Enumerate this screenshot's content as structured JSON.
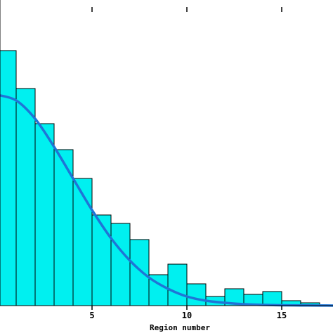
{
  "chart_data": {
    "type": "bar",
    "x_start": 0,
    "bin_width": 1,
    "values": [
      363,
      309,
      259,
      222,
      181,
      129,
      117,
      94,
      44,
      59,
      31,
      13,
      24,
      16,
      20,
      7,
      4,
      0
    ],
    "fit_curve": {
      "x": [
        0,
        1,
        2,
        3,
        4,
        5,
        6,
        7,
        8,
        9,
        10,
        11,
        12,
        13,
        14,
        15,
        16,
        17,
        18
      ],
      "y": [
        300,
        292,
        266,
        226,
        181,
        136,
        96,
        64,
        40,
        24,
        13,
        7,
        4,
        2,
        1,
        0.5,
        0.3,
        0.1,
        0.05
      ]
    },
    "xlabel": "Region number",
    "xlim": [
      0,
      17.5
    ],
    "ylim": [
      0,
      400
    ],
    "xticks": [
      5,
      10,
      15
    ],
    "tick_labels": [
      "5",
      "10",
      "15"
    ],
    "colors": {
      "bar": "#00f0f0",
      "curve": "#1f75d6",
      "axis": "#000000"
    },
    "grid": false
  }
}
